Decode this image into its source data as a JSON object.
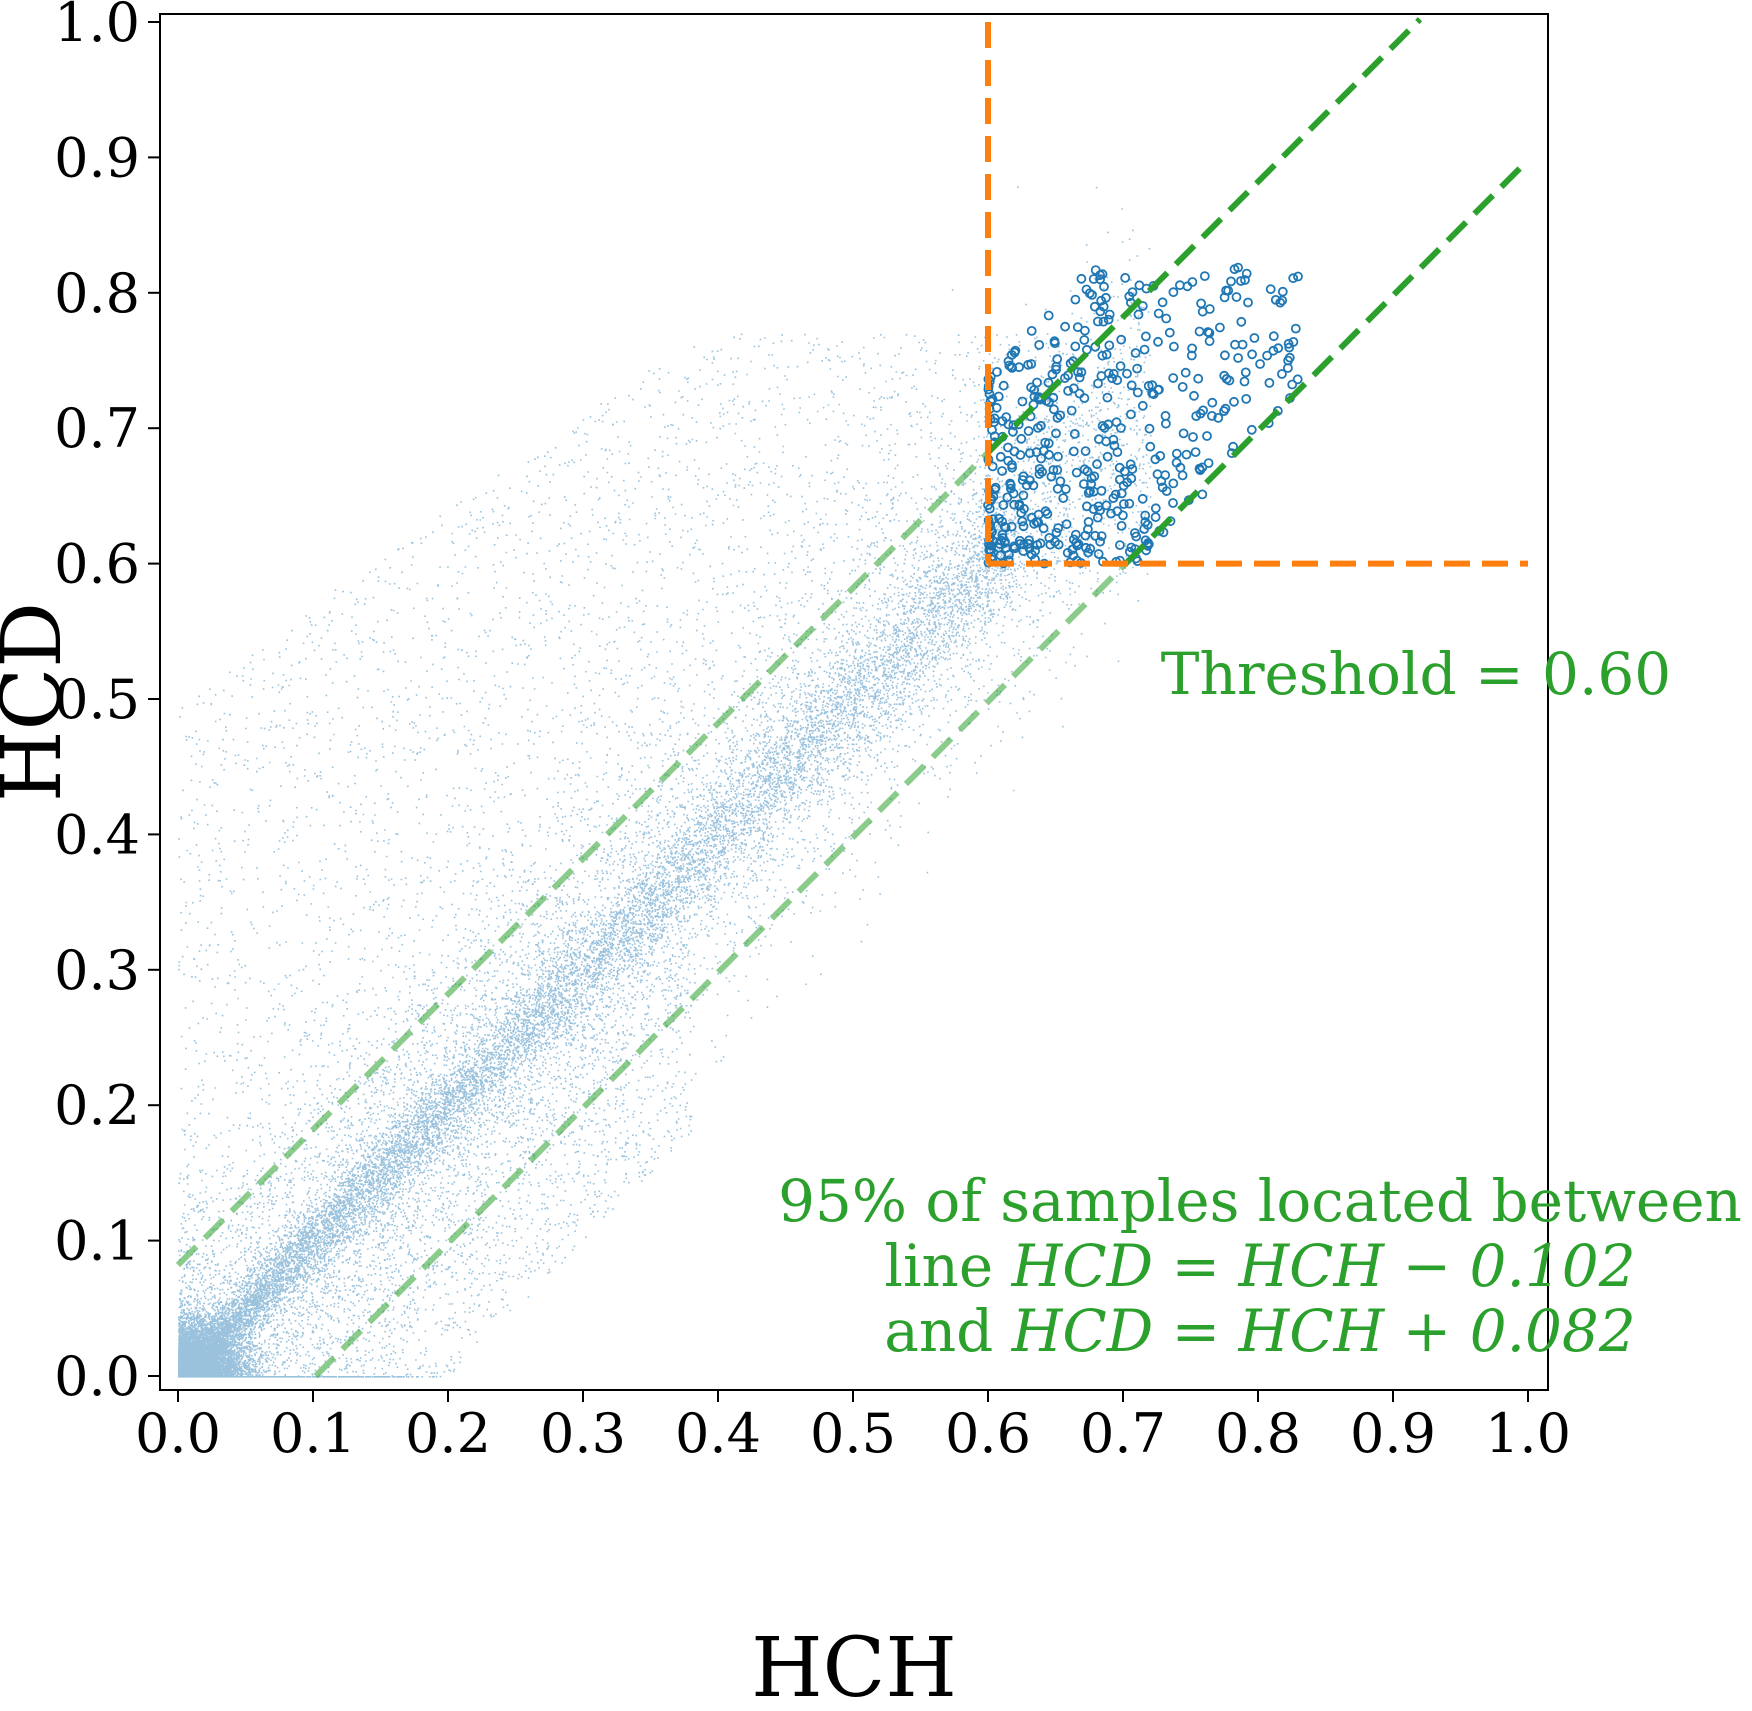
{
  "chart_data": {
    "type": "scatter",
    "title": "",
    "xlabel": "HCH",
    "ylabel": "HCD",
    "xlim": [
      0.0,
      1.0
    ],
    "ylim": [
      0.0,
      1.0
    ],
    "xticks": [
      "0.0",
      "0.1",
      "0.2",
      "0.3",
      "0.4",
      "0.5",
      "0.6",
      "0.7",
      "0.8",
      "0.9",
      "1.0"
    ],
    "yticks": [
      "0.0",
      "0.1",
      "0.2",
      "0.3",
      "0.4",
      "0.5",
      "0.6",
      "0.7",
      "0.8",
      "0.9",
      "1.0"
    ],
    "grid": false,
    "colors": {
      "points": "#1f77b4",
      "threshold": "#ff7f0e",
      "bounds": "#2ca02c"
    },
    "series": [
      {
        "kind": "dense-small-points",
        "description_points": "Large cloud of samples concentrated along HCD = HCH, densest near the origin",
        "density_bands": [
          {
            "x_range": [
              0.0,
              0.05
            ],
            "y_center_offset": 0.0,
            "spread": 0.03
          },
          {
            "x_range": [
              0.05,
              0.6
            ],
            "y_center_offset": 0.0,
            "spread": 0.05
          }
        ]
      },
      {
        "kind": "hollow-circles",
        "region": {
          "x_min": 0.6,
          "x_max": 0.83,
          "y_min": 0.6,
          "y_max": 0.82
        }
      }
    ],
    "threshold": {
      "value": 0.6,
      "label": "Threshold = 0.60"
    },
    "lines": [
      {
        "name": "upper",
        "slope": 1,
        "intercept": 0.082,
        "x_range": [
          0.0,
          0.92
        ]
      },
      {
        "name": "lower",
        "slope": 1,
        "intercept": -0.102,
        "x_range": [
          0.102,
          1.0
        ]
      }
    ],
    "annotation": {
      "line1": "95% of samples located between",
      "line2_prefix": "line ",
      "line2_math": "HCD = HCH − 0.102",
      "line3_prefix": "and ",
      "line3_math": "HCD = HCH + 0.082"
    }
  }
}
